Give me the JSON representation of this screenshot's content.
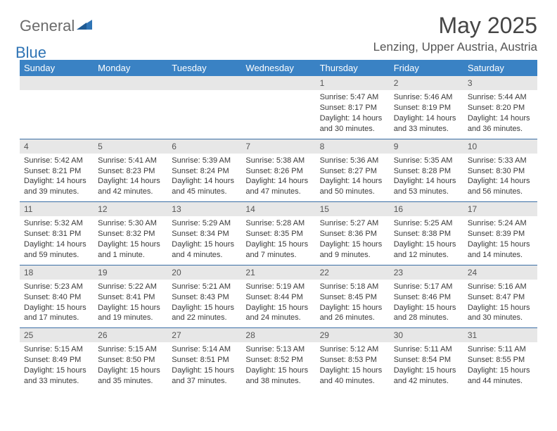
{
  "logo": {
    "text1": "General",
    "text2": "Blue"
  },
  "title": "May 2025",
  "location": "Lenzing, Upper Austria, Austria",
  "colors": {
    "header_bg": "#3a82c4",
    "header_text": "#ffffff",
    "daynum_bg": "#e7e7e7",
    "week_border": "#3a6ea5",
    "body_text": "#3a3a3a",
    "title_text": "#454545",
    "logo_gray": "#6b6b6b",
    "logo_blue": "#2f74b5"
  },
  "day_names": [
    "Sunday",
    "Monday",
    "Tuesday",
    "Wednesday",
    "Thursday",
    "Friday",
    "Saturday"
  ],
  "weeks": [
    [
      null,
      null,
      null,
      null,
      {
        "n": "1",
        "sr": "5:47 AM",
        "ss": "8:17 PM",
        "dl": "14 hours and 30 minutes."
      },
      {
        "n": "2",
        "sr": "5:46 AM",
        "ss": "8:19 PM",
        "dl": "14 hours and 33 minutes."
      },
      {
        "n": "3",
        "sr": "5:44 AM",
        "ss": "8:20 PM",
        "dl": "14 hours and 36 minutes."
      }
    ],
    [
      {
        "n": "4",
        "sr": "5:42 AM",
        "ss": "8:21 PM",
        "dl": "14 hours and 39 minutes."
      },
      {
        "n": "5",
        "sr": "5:41 AM",
        "ss": "8:23 PM",
        "dl": "14 hours and 42 minutes."
      },
      {
        "n": "6",
        "sr": "5:39 AM",
        "ss": "8:24 PM",
        "dl": "14 hours and 45 minutes."
      },
      {
        "n": "7",
        "sr": "5:38 AM",
        "ss": "8:26 PM",
        "dl": "14 hours and 47 minutes."
      },
      {
        "n": "8",
        "sr": "5:36 AM",
        "ss": "8:27 PM",
        "dl": "14 hours and 50 minutes."
      },
      {
        "n": "9",
        "sr": "5:35 AM",
        "ss": "8:28 PM",
        "dl": "14 hours and 53 minutes."
      },
      {
        "n": "10",
        "sr": "5:33 AM",
        "ss": "8:30 PM",
        "dl": "14 hours and 56 minutes."
      }
    ],
    [
      {
        "n": "11",
        "sr": "5:32 AM",
        "ss": "8:31 PM",
        "dl": "14 hours and 59 minutes."
      },
      {
        "n": "12",
        "sr": "5:30 AM",
        "ss": "8:32 PM",
        "dl": "15 hours and 1 minute."
      },
      {
        "n": "13",
        "sr": "5:29 AM",
        "ss": "8:34 PM",
        "dl": "15 hours and 4 minutes."
      },
      {
        "n": "14",
        "sr": "5:28 AM",
        "ss": "8:35 PM",
        "dl": "15 hours and 7 minutes."
      },
      {
        "n": "15",
        "sr": "5:27 AM",
        "ss": "8:36 PM",
        "dl": "15 hours and 9 minutes."
      },
      {
        "n": "16",
        "sr": "5:25 AM",
        "ss": "8:38 PM",
        "dl": "15 hours and 12 minutes."
      },
      {
        "n": "17",
        "sr": "5:24 AM",
        "ss": "8:39 PM",
        "dl": "15 hours and 14 minutes."
      }
    ],
    [
      {
        "n": "18",
        "sr": "5:23 AM",
        "ss": "8:40 PM",
        "dl": "15 hours and 17 minutes."
      },
      {
        "n": "19",
        "sr": "5:22 AM",
        "ss": "8:41 PM",
        "dl": "15 hours and 19 minutes."
      },
      {
        "n": "20",
        "sr": "5:21 AM",
        "ss": "8:43 PM",
        "dl": "15 hours and 22 minutes."
      },
      {
        "n": "21",
        "sr": "5:19 AM",
        "ss": "8:44 PM",
        "dl": "15 hours and 24 minutes."
      },
      {
        "n": "22",
        "sr": "5:18 AM",
        "ss": "8:45 PM",
        "dl": "15 hours and 26 minutes."
      },
      {
        "n": "23",
        "sr": "5:17 AM",
        "ss": "8:46 PM",
        "dl": "15 hours and 28 minutes."
      },
      {
        "n": "24",
        "sr": "5:16 AM",
        "ss": "8:47 PM",
        "dl": "15 hours and 30 minutes."
      }
    ],
    [
      {
        "n": "25",
        "sr": "5:15 AM",
        "ss": "8:49 PM",
        "dl": "15 hours and 33 minutes."
      },
      {
        "n": "26",
        "sr": "5:15 AM",
        "ss": "8:50 PM",
        "dl": "15 hours and 35 minutes."
      },
      {
        "n": "27",
        "sr": "5:14 AM",
        "ss": "8:51 PM",
        "dl": "15 hours and 37 minutes."
      },
      {
        "n": "28",
        "sr": "5:13 AM",
        "ss": "8:52 PM",
        "dl": "15 hours and 38 minutes."
      },
      {
        "n": "29",
        "sr": "5:12 AM",
        "ss": "8:53 PM",
        "dl": "15 hours and 40 minutes."
      },
      {
        "n": "30",
        "sr": "5:11 AM",
        "ss": "8:54 PM",
        "dl": "15 hours and 42 minutes."
      },
      {
        "n": "31",
        "sr": "5:11 AM",
        "ss": "8:55 PM",
        "dl": "15 hours and 44 minutes."
      }
    ]
  ],
  "labels": {
    "sunrise": "Sunrise: ",
    "sunset": "Sunset: ",
    "daylight": "Daylight: "
  }
}
